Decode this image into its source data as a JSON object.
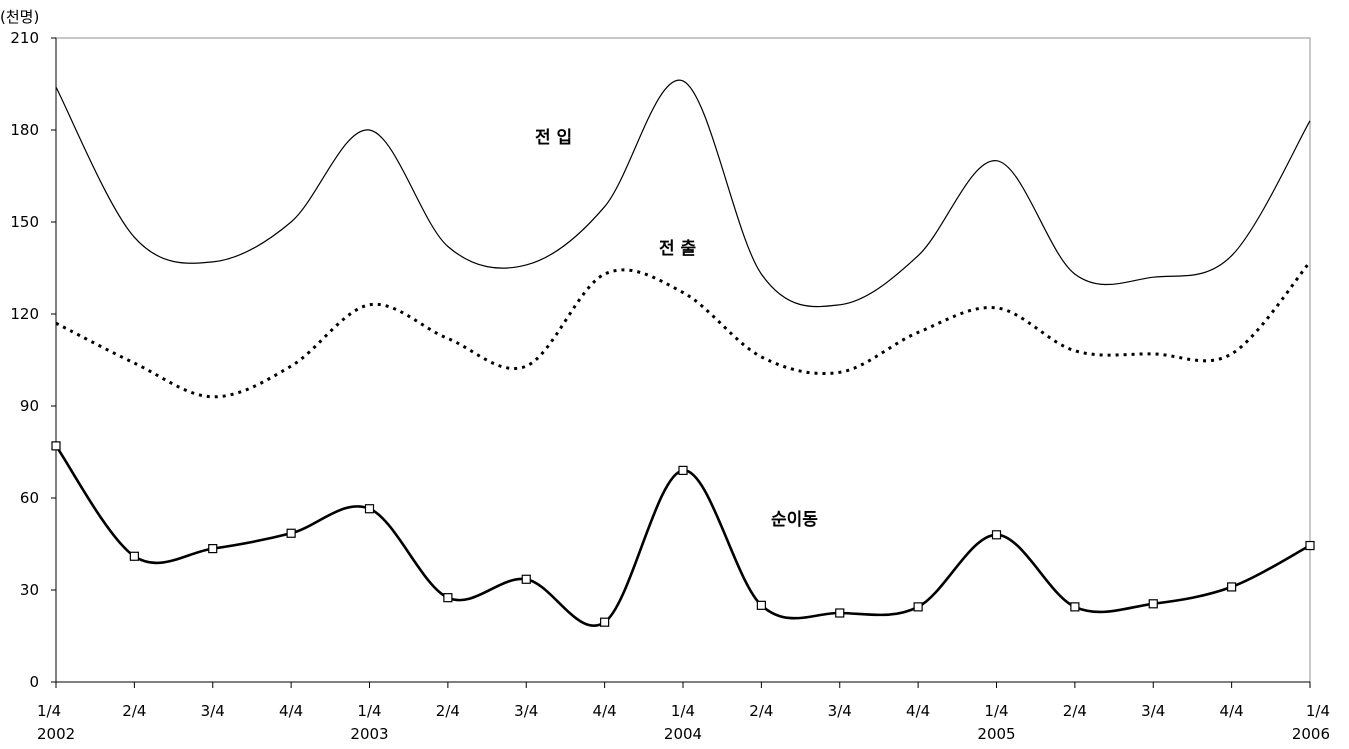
{
  "chart_data": {
    "type": "line",
    "y_unit": "(천명)",
    "ylim": [
      0,
      210
    ],
    "y_ticks": [
      "0",
      "30",
      "60",
      "90",
      "120",
      "150",
      "180",
      "210"
    ],
    "categories": [
      "1/4",
      "2/4",
      "3/4",
      "4/4",
      "1/4",
      "2/4",
      "3/4",
      "4/4",
      "1/4",
      "2/4",
      "3/4",
      "4/4",
      "1/4",
      "2/4",
      "3/4",
      "4/4",
      "1/4"
    ],
    "year_labels": [
      "2002",
      "",
      "",
      "",
      "2003",
      "",
      "",
      "",
      "2004",
      "",
      "",
      "",
      "2005",
      "",
      "",
      "",
      "2006"
    ],
    "grid": false,
    "series": [
      {
        "name": "전 입",
        "style": "thin-solid",
        "color": "#000000",
        "values": [
          194,
          145,
          137,
          150,
          180,
          142,
          136,
          155,
          196,
          133,
          123,
          139,
          170,
          133,
          132,
          139,
          183
        ]
      },
      {
        "name": "전 출",
        "style": "dotted",
        "color": "#000000",
        "values": [
          117,
          104,
          93,
          103,
          123,
          112,
          103,
          133,
          127,
          106,
          101,
          114,
          122,
          108,
          107,
          107,
          137
        ]
      },
      {
        "name": "순이동",
        "style": "bold-solid-square-markers",
        "color": "#000000",
        "values": [
          77,
          41,
          43.5,
          48.5,
          56.5,
          27.5,
          33.5,
          19.5,
          69,
          25,
          22.5,
          24.5,
          48,
          24.5,
          25.5,
          31,
          44.5
        ]
      }
    ]
  }
}
